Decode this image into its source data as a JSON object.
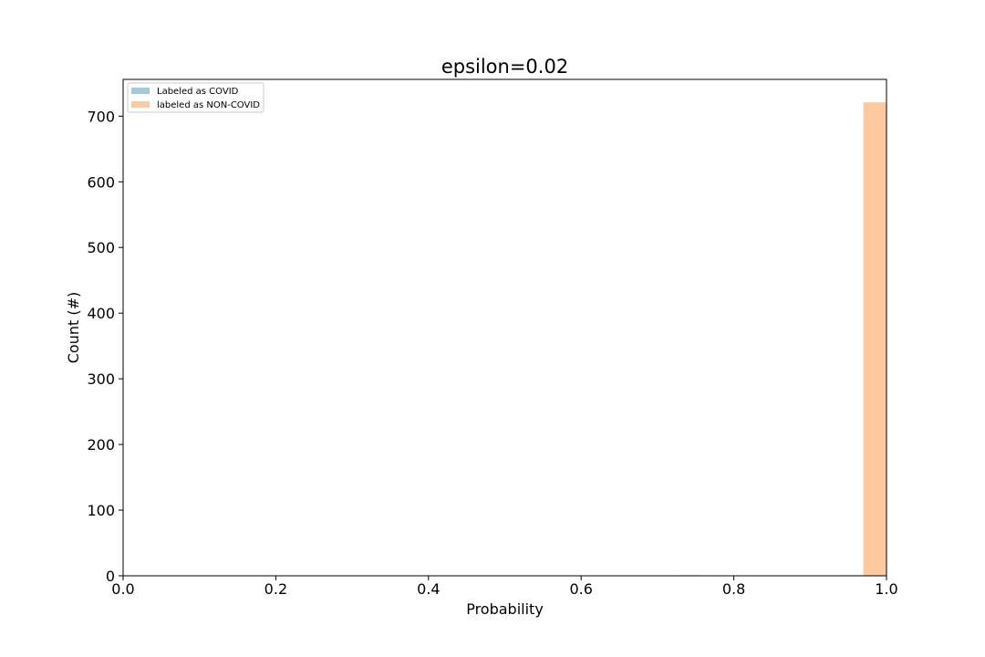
{
  "chart_data": {
    "type": "bar",
    "title": "epsilon=0.02",
    "xlabel": "Probability",
    "ylabel": "Count (#)",
    "xlim": [
      0.0,
      1.0
    ],
    "ylim": [
      0,
      756
    ],
    "x_ticks": [
      "0.0",
      "0.2",
      "0.4",
      "0.6",
      "0.8",
      "1.0"
    ],
    "y_ticks": [
      "0",
      "100",
      "200",
      "300",
      "400",
      "500",
      "600",
      "700"
    ],
    "legend": {
      "placement": "top-left",
      "entries": [
        "Labeled as COVID",
        "labeled as NON-COVID"
      ]
    },
    "grid": false,
    "bin_width": 0.0303,
    "series": [
      {
        "name": "Labeled as COVID",
        "color": "#a6c8dd",
        "bins": []
      },
      {
        "name": "labeled as NON-COVID",
        "color": "#fec99f",
        "bins": [
          {
            "x0": 0.7273,
            "x1": 0.7576,
            "value": 1
          },
          {
            "x0": 0.9394,
            "x1": 0.9697,
            "value": 1
          },
          {
            "x0": 0.9697,
            "x1": 1.0,
            "value": 721
          }
        ]
      }
    ]
  }
}
